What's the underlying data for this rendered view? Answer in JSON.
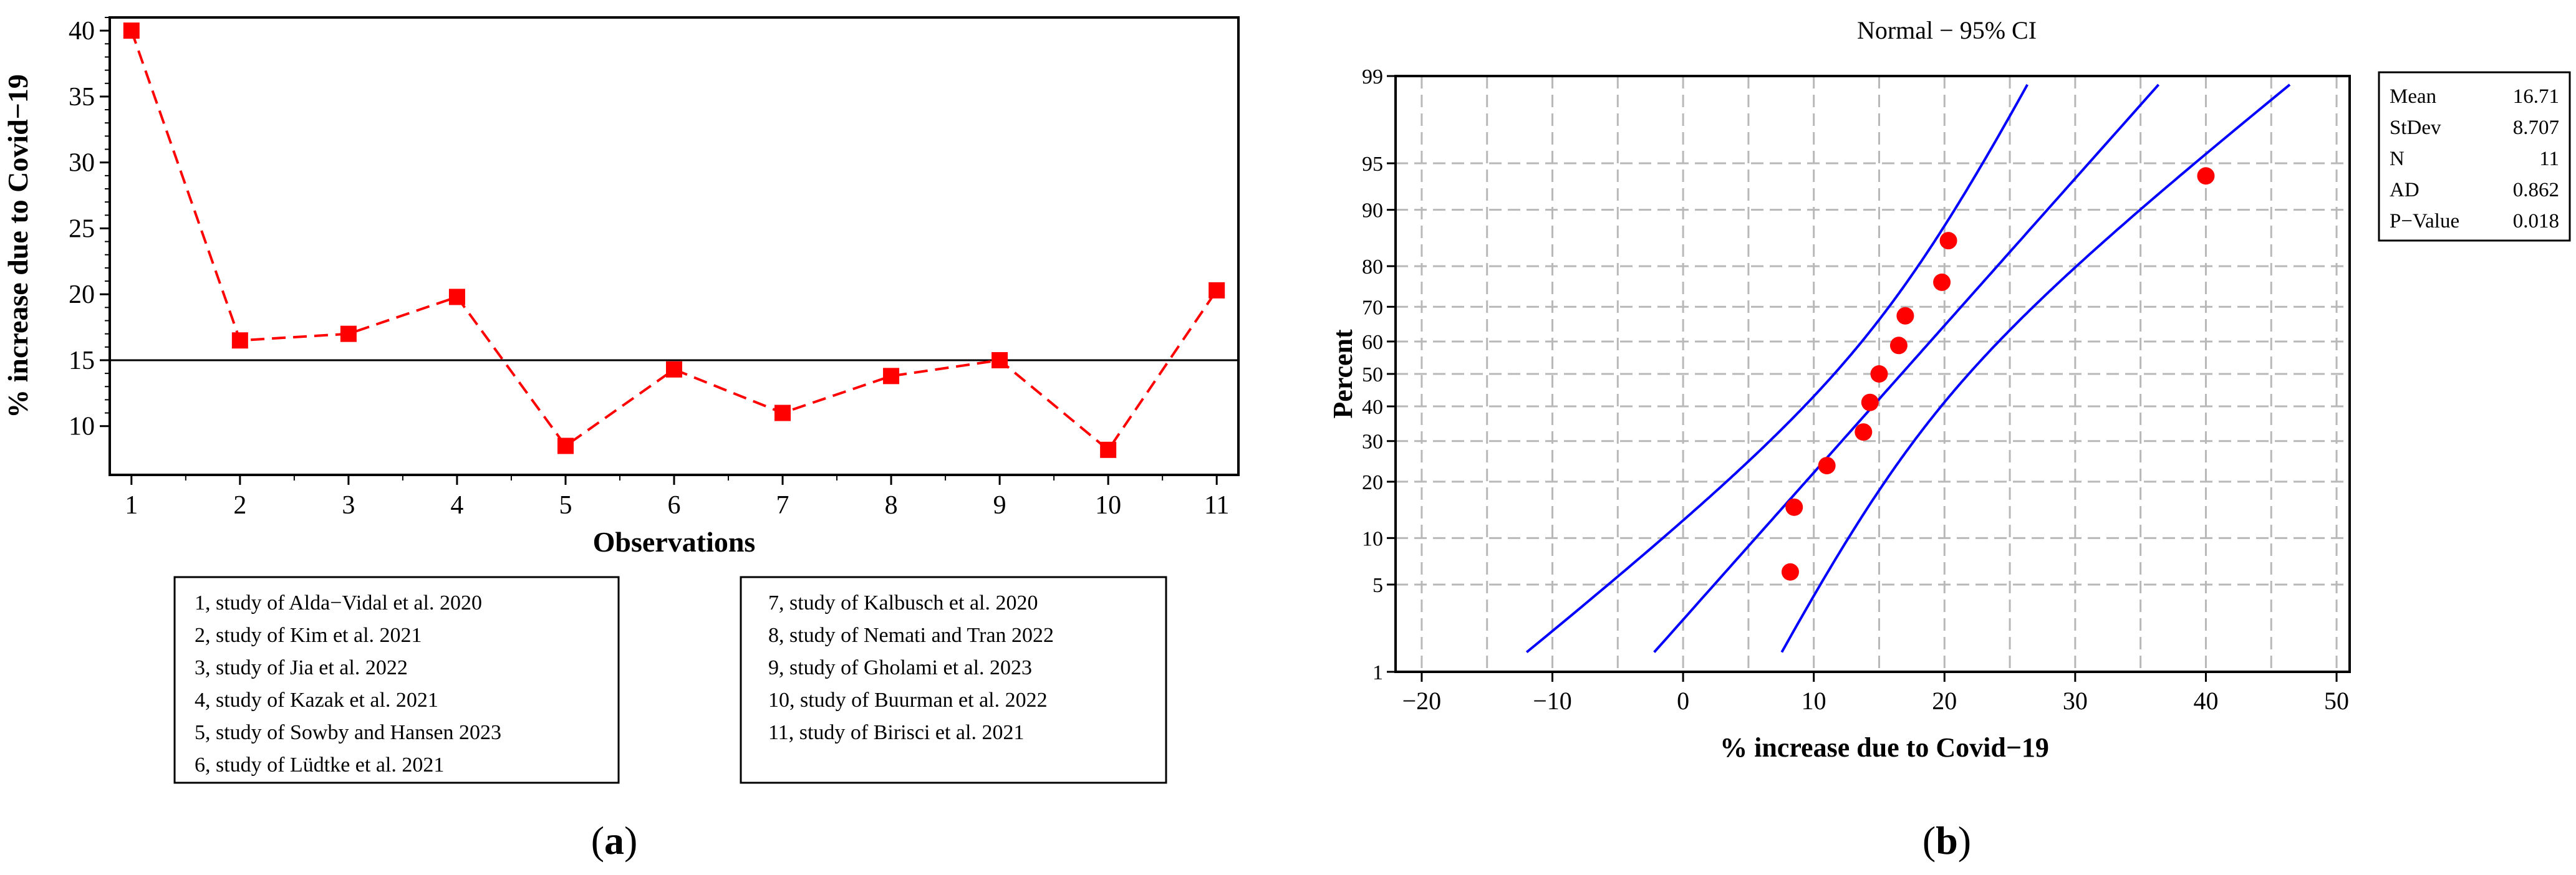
{
  "chart_data": [
    {
      "type": "line",
      "panel_label": "(a)",
      "xlabel": "Observations",
      "ylabel": "% increase due to Covid−19",
      "xlim": [
        0.8,
        11.2
      ],
      "ylim": [
        6.3,
        41
      ],
      "x_ticks": [
        "1",
        "2",
        "3",
        "4",
        "5",
        "6",
        "7",
        "8",
        "9",
        "10",
        "11"
      ],
      "y_ticks": [
        "10",
        "15",
        "20",
        "25",
        "30",
        "35",
        "40"
      ],
      "reference_line": 15,
      "series": [
        {
          "x": [
            1,
            2,
            3,
            4,
            5,
            6,
            7,
            8,
            9,
            10,
            11
          ],
          "values": [
            40.0,
            16.5,
            17.0,
            19.8,
            8.5,
            14.3,
            11.0,
            13.8,
            15.0,
            8.2,
            20.3
          ],
          "color": "#ff0000",
          "line_style": "dashed",
          "marker": "square"
        }
      ],
      "legend_boxes": [
        [
          "1, study of Alda−Vidal et al. 2020",
          "2, study of Kim et al. 2021",
          "3, study of Jia et al. 2022",
          "4, study of Kazak et al. 2021",
          "5, study of Sowby and Hansen 2023",
          "6, study of Lüdtke et al. 2021"
        ],
        [
          "7, study of Kalbusch et al. 2020",
          "8, study of Nemati and Tran 2022",
          "9, study of Gholami et al. 2023",
          "10, study of Buurman et al. 2022",
          "11, study of Birisci et al. 2021"
        ]
      ]
    },
    {
      "type": "scatter",
      "panel_label": "(b)",
      "title": "Normal − 95% CI",
      "xlabel": "% increase due to Covid−19",
      "ylabel": "Percent",
      "xlim": [
        -22,
        51
      ],
      "y_scale": "normal-probability",
      "ylim": [
        1,
        99
      ],
      "x_ticks": [
        "−20",
        "−10",
        "0",
        "10",
        "20",
        "30",
        "40",
        "50"
      ],
      "y_ticks": [
        "1",
        "5",
        "10",
        "20",
        "30",
        "40",
        "50",
        "60",
        "70",
        "80",
        "90",
        "95",
        "99"
      ],
      "grid": true,
      "fit_line": {
        "mean": 16.71,
        "stdev": 8.707,
        "color": "#0000ff"
      },
      "points": {
        "x": [
          8.2,
          8.5,
          11.0,
          13.8,
          14.3,
          15.0,
          16.5,
          17.0,
          19.8,
          20.3,
          40.0
        ],
        "y": [
          6.1,
          14.9,
          23.7,
          32.5,
          41.2,
          50.0,
          58.8,
          67.5,
          76.3,
          85.1,
          93.9
        ],
        "color": "#ff0000"
      },
      "stats": [
        {
          "label": "Mean",
          "value": "16.71"
        },
        {
          "label": "StDev",
          "value": "8.707"
        },
        {
          "label": "N",
          "value": "11"
        },
        {
          "label": "AD",
          "value": "0.862"
        },
        {
          "label": "P−Value",
          "value": "0.018"
        }
      ]
    }
  ]
}
